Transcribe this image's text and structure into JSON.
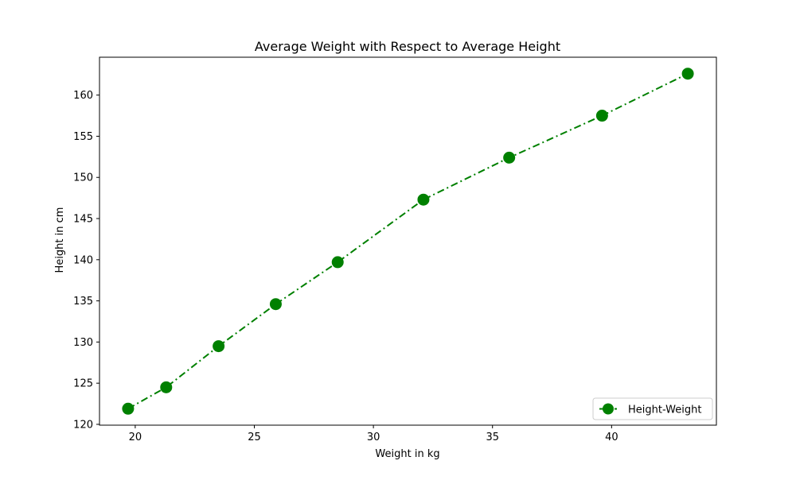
{
  "chart_data": {
    "type": "line",
    "title": "Average Weight with Respect to Average Height",
    "xlabel": "Weight in kg",
    "ylabel": "Height in cm",
    "x": [
      19.7,
      21.3,
      23.5,
      25.9,
      28.5,
      32.1,
      35.7,
      39.6,
      43.2
    ],
    "series": [
      {
        "name": "Height-Weight",
        "values": [
          121.9,
          124.5,
          129.5,
          134.6,
          139.7,
          147.3,
          152.4,
          157.5,
          162.6
        ],
        "color": "#008000",
        "line_style": "dash-dot",
        "marker": "circle"
      }
    ],
    "xlim": [
      18.5,
      44.4
    ],
    "ylim": [
      119.9,
      164.6
    ],
    "xticks": [
      20,
      25,
      30,
      35,
      40
    ],
    "yticks": [
      120,
      125,
      130,
      135,
      140,
      145,
      150,
      155,
      160
    ],
    "grid": false,
    "legend_position": "lower-right"
  }
}
